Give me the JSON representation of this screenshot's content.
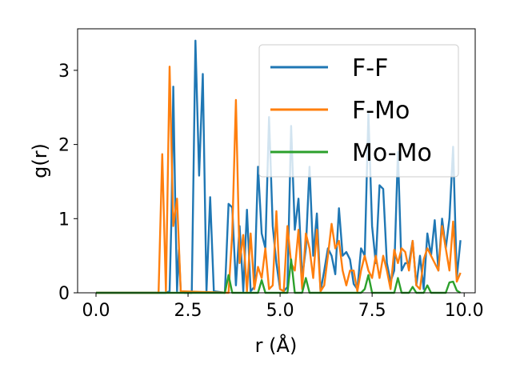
{
  "chart_data": {
    "type": "line",
    "xlabel": "r (Å)",
    "ylabel": "g(r)",
    "xlim": [
      -0.5,
      10.3
    ],
    "ylim": [
      0,
      3.56
    ],
    "xticks": [
      0.0,
      2.5,
      5.0,
      7.5,
      10.0
    ],
    "xtick_labels": [
      "0.0",
      "2.5",
      "5.0",
      "7.5",
      "10.0"
    ],
    "yticks": [
      0,
      1,
      2,
      3
    ],
    "ytick_labels": [
      "0",
      "1",
      "2",
      "3"
    ],
    "grid": false,
    "legend_position": "upper right",
    "series": [
      {
        "name": "F-F",
        "color": "#1f77b4",
        "points": [
          [
            0.0,
            0
          ],
          [
            1.9,
            0
          ],
          [
            2.0,
            0.02
          ],
          [
            2.05,
            1.0
          ],
          [
            2.1,
            2.78
          ],
          [
            2.15,
            1.3
          ],
          [
            2.2,
            0.02
          ],
          [
            2.25,
            0.58
          ],
          [
            2.3,
            0.02
          ],
          [
            2.4,
            0
          ],
          [
            2.6,
            0
          ],
          [
            2.7,
            3.4
          ],
          [
            2.8,
            1.58
          ],
          [
            2.9,
            2.95
          ],
          [
            3.0,
            0.02
          ],
          [
            3.1,
            1.29
          ],
          [
            3.2,
            0.02
          ],
          [
            3.5,
            0
          ],
          [
            3.6,
            1.2
          ],
          [
            3.7,
            1.15
          ],
          [
            3.8,
            0.1
          ],
          [
            3.9,
            0.9
          ],
          [
            4.0,
            0.02
          ],
          [
            4.1,
            1.12
          ],
          [
            4.2,
            0.02
          ],
          [
            4.3,
            0.08
          ],
          [
            4.4,
            1.7
          ],
          [
            4.5,
            0.8
          ],
          [
            4.6,
            0.6
          ],
          [
            4.7,
            2.37
          ],
          [
            4.8,
            0.9
          ],
          [
            4.9,
            0.4
          ],
          [
            5.0,
            0.05
          ],
          [
            5.1,
            0.02
          ],
          [
            5.2,
            0.08
          ],
          [
            5.3,
            2.25
          ],
          [
            5.4,
            0.85
          ],
          [
            5.5,
            1.27
          ],
          [
            5.6,
            0.2
          ],
          [
            5.7,
            0.6
          ],
          [
            5.8,
            1.7
          ],
          [
            5.9,
            0.5
          ],
          [
            6.0,
            1.07
          ],
          [
            6.1,
            0.02
          ],
          [
            6.2,
            0.3
          ],
          [
            6.3,
            0.6
          ],
          [
            6.4,
            0.5
          ],
          [
            6.5,
            0.25
          ],
          [
            6.6,
            1.14
          ],
          [
            6.7,
            0.5
          ],
          [
            6.8,
            0.55
          ],
          [
            6.9,
            0.45
          ],
          [
            7.0,
            0.12
          ],
          [
            7.1,
            0.05
          ],
          [
            7.2,
            0.6
          ],
          [
            7.3,
            0.5
          ],
          [
            7.4,
            2.42
          ],
          [
            7.5,
            0.9
          ],
          [
            7.6,
            0.4
          ],
          [
            7.7,
            1.45
          ],
          [
            7.8,
            1.4
          ],
          [
            7.9,
            0.4
          ],
          [
            8.0,
            0.15
          ],
          [
            8.1,
            0.3
          ],
          [
            8.2,
            1.9
          ],
          [
            8.3,
            0.3
          ],
          [
            8.4,
            0.4
          ],
          [
            8.5,
            0.4
          ],
          [
            8.6,
            0.7
          ],
          [
            8.7,
            0.1
          ],
          [
            8.8,
            0.5
          ],
          [
            8.9,
            0.05
          ],
          [
            9.0,
            0.8
          ],
          [
            9.1,
            0.5
          ],
          [
            9.2,
            0.98
          ],
          [
            9.3,
            0.3
          ],
          [
            9.4,
            1.0
          ],
          [
            9.5,
            0.6
          ],
          [
            9.6,
            1.0
          ],
          [
            9.7,
            1.97
          ],
          [
            9.8,
            0.2
          ],
          [
            9.9,
            0.71
          ]
        ]
      },
      {
        "name": "F-Mo",
        "color": "#ff7f0e",
        "points": [
          [
            0.0,
            0
          ],
          [
            1.7,
            0
          ],
          [
            1.8,
            1.87
          ],
          [
            1.9,
            0.02
          ],
          [
            2.0,
            3.05
          ],
          [
            2.1,
            0.9
          ],
          [
            2.2,
            1.27
          ],
          [
            2.3,
            0.02
          ],
          [
            3.6,
            0
          ],
          [
            3.7,
            0.8
          ],
          [
            3.8,
            2.6
          ],
          [
            3.9,
            0.4
          ],
          [
            4.0,
            0.78
          ],
          [
            4.1,
            0.02
          ],
          [
            4.2,
            0.8
          ],
          [
            4.3,
            0.05
          ],
          [
            4.4,
            0.35
          ],
          [
            4.5,
            0.2
          ],
          [
            4.6,
            0.6
          ],
          [
            4.7,
            0.05
          ],
          [
            4.8,
            0.1
          ],
          [
            4.9,
            1.1
          ],
          [
            5.0,
            0.05
          ],
          [
            5.1,
            0.02
          ],
          [
            5.2,
            0.9
          ],
          [
            5.3,
            0.4
          ],
          [
            5.4,
            0.3
          ],
          [
            5.5,
            0.85
          ],
          [
            5.6,
            0.05
          ],
          [
            5.7,
            0.8
          ],
          [
            5.8,
            0.6
          ],
          [
            5.9,
            0.2
          ],
          [
            6.0,
            0.85
          ],
          [
            6.1,
            0.02
          ],
          [
            6.2,
            0.1
          ],
          [
            6.3,
            0.5
          ],
          [
            6.4,
            0.93
          ],
          [
            6.5,
            0.6
          ],
          [
            6.6,
            0.7
          ],
          [
            6.7,
            0.3
          ],
          [
            6.8,
            0.1
          ],
          [
            6.9,
            0.3
          ],
          [
            7.0,
            0.3
          ],
          [
            7.1,
            0.02
          ],
          [
            7.2,
            0.3
          ],
          [
            7.3,
            0.5
          ],
          [
            7.4,
            0.3
          ],
          [
            7.5,
            0.2
          ],
          [
            7.6,
            0.5
          ],
          [
            7.7,
            0.2
          ],
          [
            7.8,
            0.5
          ],
          [
            7.9,
            0.3
          ],
          [
            8.0,
            0.05
          ],
          [
            8.1,
            0.58
          ],
          [
            8.2,
            0.4
          ],
          [
            8.3,
            0.6
          ],
          [
            8.4,
            0.55
          ],
          [
            8.5,
            0.3
          ],
          [
            8.6,
            0.7
          ],
          [
            8.7,
            0.1
          ],
          [
            8.8,
            0.05
          ],
          [
            8.9,
            0.45
          ],
          [
            9.0,
            0.6
          ],
          [
            9.1,
            0.5
          ],
          [
            9.2,
            0.4
          ],
          [
            9.3,
            0.3
          ],
          [
            9.4,
            0.9
          ],
          [
            9.5,
            0.6
          ],
          [
            9.6,
            0.3
          ],
          [
            9.7,
            0.96
          ],
          [
            9.8,
            0.15
          ],
          [
            9.9,
            0.27
          ]
        ]
      },
      {
        "name": "Mo-Mo",
        "color": "#2ca02c",
        "points": [
          [
            0.0,
            0
          ],
          [
            3.5,
            0
          ],
          [
            3.6,
            0.24
          ],
          [
            3.7,
            0
          ],
          [
            4.4,
            0
          ],
          [
            4.5,
            0.17
          ],
          [
            4.6,
            0
          ],
          [
            5.2,
            0
          ],
          [
            5.3,
            0.45
          ],
          [
            5.4,
            0
          ],
          [
            5.6,
            0
          ],
          [
            5.7,
            0.2
          ],
          [
            5.8,
            0
          ],
          [
            7.2,
            0
          ],
          [
            7.3,
            0.05
          ],
          [
            7.4,
            0.24
          ],
          [
            7.5,
            0
          ],
          [
            8.1,
            0
          ],
          [
            8.2,
            0.2
          ],
          [
            8.3,
            0
          ],
          [
            8.5,
            0
          ],
          [
            8.6,
            0.08
          ],
          [
            8.7,
            0
          ],
          [
            8.9,
            0
          ],
          [
            9.0,
            0.1
          ],
          [
            9.1,
            0
          ],
          [
            9.5,
            0
          ],
          [
            9.6,
            0.14
          ],
          [
            9.7,
            0.15
          ],
          [
            9.8,
            0.03
          ],
          [
            9.9,
            0
          ]
        ]
      }
    ]
  }
}
